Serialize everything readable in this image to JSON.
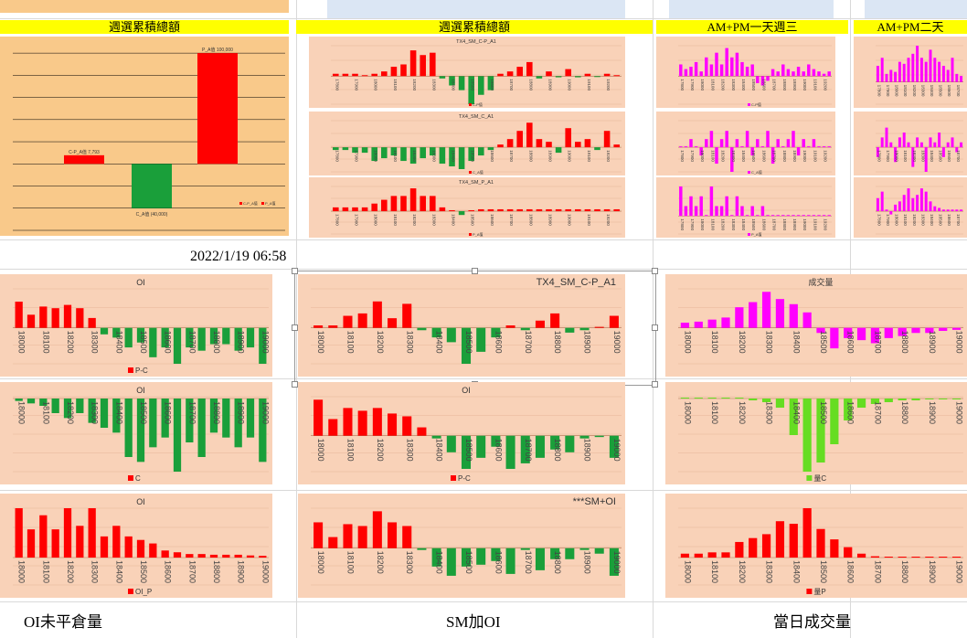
{
  "headers": {
    "weekly_total_left": "週選累積總額",
    "weekly_total_mid": "週選累積總額",
    "ampm_wed": "AM+PM一天週三",
    "ampm_tue": "AM+PM二天"
  },
  "timestamp": "2022/1/19 06:58",
  "captions": {
    "oi": "OI未平倉量",
    "sm_oi": "SM加OI",
    "volume": "當日成交量"
  },
  "colors": {
    "bg_orange": "#f9c98a",
    "bg_peach": "#f9d2b8",
    "red": "#ff0000",
    "green": "#1a9f3a",
    "magenta": "#ff00ff",
    "lime": "#66dd22"
  },
  "chart_data": [
    {
      "id": "weekly-total-waterfall",
      "type": "bar",
      "categories": [
        "C-P_A值",
        "C_A值",
        "P_A值"
      ],
      "values": [
        7793,
        -40000,
        100000
      ],
      "data_labels": [
        "C-P_A值 7,793",
        "C_A值 (40,000)",
        "P_A值 100,000"
      ],
      "legend": [
        "C-P_A值",
        "P_A值"
      ]
    },
    {
      "id": "tx4-sm-cp-a1-small",
      "type": "bar",
      "title": "TX4_SM_C-P_A1",
      "categories": [
        "17800",
        "17850",
        "17900",
        "17950",
        "18000",
        "18050",
        "18100",
        "18150",
        "18200",
        "18250",
        "18300",
        "18350",
        "18400",
        "18450",
        "18500",
        "18550",
        "18600",
        "18650",
        "18700",
        "18750",
        "18800",
        "18850",
        "18900",
        "18950",
        "19000",
        "19050",
        "19100",
        "19150",
        "19200",
        "19250"
      ],
      "values": [
        1000,
        1000,
        1000,
        0,
        1000,
        2000,
        4000,
        5000,
        11000,
        9000,
        10000,
        -1000,
        -4000,
        -6000,
        -12000,
        -8000,
        -6000,
        1000,
        2000,
        4000,
        6000,
        -1000,
        2000,
        -500,
        3000,
        -500,
        1000,
        -300,
        1000,
        0
      ],
      "legend": [
        "C-P值"
      ]
    },
    {
      "id": "tx4-sm-c-a1-small",
      "type": "bar",
      "title": "TX4_SM_C_A1",
      "categories": [
        "17800",
        "17850",
        "17900",
        "17950",
        "18000",
        "18050",
        "18100",
        "18150",
        "18200",
        "18250",
        "18300",
        "18350",
        "18400",
        "18450",
        "18500",
        "18550",
        "18600",
        "18650",
        "18700",
        "18750",
        "18800",
        "18850",
        "18900",
        "18950",
        "19000",
        "19050",
        "19100",
        "19150",
        "19200",
        "19250"
      ],
      "values": [
        -1000,
        -1000,
        -2000,
        -2000,
        -5000,
        -4000,
        -3000,
        -5000,
        -6000,
        -4000,
        -3000,
        -6000,
        -7000,
        -8000,
        -5000,
        -3000,
        -1000,
        1000,
        3000,
        6000,
        9000,
        3000,
        2000,
        -2000,
        7000,
        2000,
        3000,
        -1000,
        6000,
        1000
      ],
      "legend": [
        "C_A值"
      ]
    },
    {
      "id": "tx4-sm-p-a1-small",
      "type": "bar",
      "title": "TX4_SM_P_A1",
      "categories": [
        "17800",
        "17850",
        "17900",
        "17950",
        "18000",
        "18050",
        "18100",
        "18150",
        "18200",
        "18250",
        "18300",
        "18350",
        "18400",
        "18450",
        "18500",
        "18550",
        "18600",
        "18650",
        "18700",
        "18750",
        "18800",
        "18850",
        "18900",
        "18950",
        "19000",
        "19050",
        "19100",
        "19150",
        "19200",
        "19250"
      ],
      "values": [
        10,
        10,
        10,
        10,
        20,
        30,
        40,
        40,
        60,
        40,
        40,
        10,
        0,
        -10,
        0,
        5,
        5,
        5,
        5,
        5,
        5,
        5,
        5,
        5,
        5,
        5,
        5,
        5,
        5,
        5
      ],
      "legend": [
        "P_A值"
      ]
    },
    {
      "id": "oi-p-minus-c",
      "type": "bar",
      "title": "OI",
      "categories": [
        "18000",
        "18050",
        "18100",
        "18150",
        "18200",
        "18250",
        "18300",
        "18350",
        "18400",
        "18450",
        "18500",
        "18550",
        "18600",
        "18650",
        "18700",
        "18750",
        "18800",
        "18850",
        "18900",
        "18950",
        "19000"
      ],
      "values": [
        8000,
        4000,
        6500,
        6000,
        7000,
        6000,
        3000,
        -2000,
        -3000,
        -6000,
        -4500,
        -9000,
        -6000,
        -11000,
        -6000,
        -7000,
        -5000,
        -5000,
        -7000,
        -6000,
        -11000
      ],
      "legend": [
        "P-C"
      ]
    },
    {
      "id": "sm-cp-a1-large",
      "type": "bar",
      "title": "TX4_SM_C-P_A1",
      "categories": [
        "18000",
        "18050",
        "18100",
        "18150",
        "18200",
        "18250",
        "18300",
        "18350",
        "18400",
        "18450",
        "18500",
        "18550",
        "18600",
        "18650",
        "18700",
        "18750",
        "18800",
        "18850",
        "18900",
        "18950",
        "19000"
      ],
      "values": [
        1000,
        1000,
        5000,
        6000,
        11000,
        4000,
        10000,
        -1000,
        -4000,
        -6000,
        -15000,
        -10000,
        -4000,
        1000,
        -1000,
        3000,
        6000,
        -2000,
        -1000,
        0,
        5000
      ],
      "ylim": [
        -15000,
        15000
      ]
    },
    {
      "id": "volume",
      "type": "bar",
      "title": "成交量",
      "categories": [
        "18000",
        "18050",
        "18100",
        "18150",
        "18200",
        "18250",
        "18300",
        "18350",
        "18400",
        "18450",
        "18500",
        "18550",
        "18600",
        "18650",
        "18700",
        "18750",
        "18800",
        "18850",
        "18900",
        "18950",
        "19000"
      ],
      "values": [
        5000,
        6000,
        8000,
        10000,
        20000,
        25000,
        35000,
        28000,
        23000,
        15000,
        -5000,
        -20000,
        -10000,
        -12000,
        -15000,
        -10000,
        -8000,
        -5000,
        -5000,
        -3000,
        -2000
      ]
    },
    {
      "id": "oi-c",
      "type": "bar",
      "title": "OI",
      "categories": [
        "18000",
        "18050",
        "18100",
        "18150",
        "18200",
        "18250",
        "18300",
        "18350",
        "18400",
        "18450",
        "18500",
        "18550",
        "18600",
        "18650",
        "18700",
        "18750",
        "18800",
        "18850",
        "18900",
        "18950",
        "19000"
      ],
      "values": [
        -500,
        -1000,
        -1500,
        -3000,
        -4000,
        -3000,
        -5000,
        -6000,
        -7000,
        -12000,
        -13000,
        -10000,
        -8000,
        -15000,
        -9000,
        -12000,
        -7000,
        -8000,
        -10000,
        -8000,
        -13000
      ],
      "legend": [
        "C"
      ]
    },
    {
      "id": "oi-p-minus-c-2",
      "type": "bar",
      "title": "OI",
      "categories": [
        "18000",
        "18050",
        "18100",
        "18150",
        "18200",
        "18250",
        "18300",
        "18350",
        "18400",
        "18450",
        "18500",
        "18550",
        "18600",
        "18650",
        "18700",
        "18750",
        "18800",
        "18850",
        "18900",
        "18950",
        "19000"
      ],
      "values": [
        13000,
        6000,
        10000,
        9000,
        10000,
        8000,
        7000,
        3000,
        -1000,
        -6000,
        -12000,
        -8000,
        -4000,
        -12000,
        -10000,
        -8000,
        -5000,
        -6000,
        -1000,
        -500,
        -8000
      ],
      "legend": [
        "P-C"
      ]
    },
    {
      "id": "volume-c",
      "type": "bar",
      "categories": [
        "18000",
        "18050",
        "18100",
        "18150",
        "18200",
        "18250",
        "18300",
        "18350",
        "18400",
        "18450",
        "18500",
        "18550",
        "18600",
        "18650",
        "18700",
        "18750",
        "18800",
        "18850",
        "18900",
        "18950",
        "19000"
      ],
      "values": [
        0,
        0,
        0,
        0,
        0,
        -1000,
        -2000,
        -5000,
        -20000,
        -40000,
        -35000,
        -25000,
        -12000,
        -5000,
        -3000,
        -2000,
        -1000,
        -1000,
        -500,
        -500,
        -300
      ],
      "legend": [
        "量C"
      ]
    },
    {
      "id": "oi-p",
      "type": "bar",
      "title": "OI",
      "categories": [
        "18000",
        "18050",
        "18100",
        "18150",
        "18200",
        "18250",
        "18300",
        "18350",
        "18400",
        "18450",
        "18500",
        "18550",
        "18600",
        "18650",
        "18700",
        "18750",
        "18800",
        "18850",
        "18900",
        "18950",
        "19000"
      ],
      "values": [
        14000,
        8000,
        12000,
        8000,
        14000,
        9000,
        14000,
        6000,
        9000,
        6000,
        5000,
        4000,
        2000,
        1500,
        1000,
        1000,
        800,
        800,
        800,
        600,
        500
      ],
      "legend": [
        "OI_P"
      ]
    },
    {
      "id": "sm-plus-oi",
      "type": "bar",
      "title": "***SM+OI",
      "categories": [
        "18000",
        "18050",
        "18100",
        "18150",
        "18200",
        "18250",
        "18300",
        "18350",
        "18400",
        "18450",
        "18500",
        "18550",
        "18600",
        "18650",
        "18700",
        "18750",
        "18800",
        "18850",
        "18900",
        "18950",
        "19000"
      ],
      "values": [
        14000,
        6000,
        13000,
        12000,
        20000,
        14000,
        12000,
        -1000,
        -10000,
        -15000,
        -10000,
        -9000,
        -7000,
        -14000,
        -1000,
        -12000,
        -6000,
        -6000,
        -1000,
        -3000,
        -15000
      ]
    },
    {
      "id": "volume-p",
      "type": "bar",
      "categories": [
        "18000",
        "18050",
        "18100",
        "18150",
        "18200",
        "18250",
        "18300",
        "18350",
        "18400",
        "18450",
        "18500",
        "18550",
        "18600",
        "18650",
        "18700",
        "18750",
        "18800",
        "18850",
        "18900",
        "18950",
        "19000"
      ],
      "values": [
        3000,
        3000,
        4000,
        4000,
        12000,
        15000,
        18000,
        28000,
        26000,
        38000,
        22000,
        14000,
        8000,
        3000,
        1000,
        0,
        0,
        0,
        0,
        0,
        0
      ],
      "legend": [
        "量P"
      ]
    },
    {
      "id": "ampm-wed-cp",
      "type": "bar",
      "categories": [
        "17800",
        "17850",
        "17900",
        "17950",
        "18000",
        "18050",
        "18100",
        "18150",
        "18200",
        "18250",
        "18300",
        "18350",
        "18400",
        "18450",
        "18500",
        "18550",
        "18600",
        "18650",
        "18700",
        "18750",
        "18800",
        "18850",
        "18900",
        "18950",
        "19000",
        "19050",
        "19100",
        "19150",
        "19200",
        "19250"
      ],
      "values": [
        5,
        3,
        4,
        6,
        2,
        8,
        5,
        10,
        5,
        12,
        8,
        10,
        6,
        4,
        5,
        -3,
        -4,
        -2,
        3,
        2,
        5,
        3,
        2,
        4,
        2,
        5,
        3,
        2,
        1,
        2
      ],
      "legend": [
        "C-P值"
      ]
    },
    {
      "id": "ampm-wed-c",
      "type": "bar",
      "categories": [
        "17800",
        "17850",
        "17900",
        "17950",
        "18000",
        "18050",
        "18100",
        "18150",
        "18200",
        "18250",
        "18300",
        "18350",
        "18400",
        "18450",
        "18500",
        "18550",
        "18600",
        "18650",
        "18700",
        "18750",
        "18800",
        "18850",
        "18900",
        "18950",
        "19000",
        "19050",
        "19100",
        "19150",
        "19200",
        "19250"
      ],
      "values": [
        0,
        0,
        1,
        0,
        -1,
        1,
        2,
        -2,
        1,
        2,
        -3,
        1,
        0,
        2,
        -1,
        1,
        0,
        2,
        -2,
        1,
        0,
        1,
        2,
        -1,
        1,
        0,
        1,
        0,
        0,
        0
      ],
      "legend": [
        "C_A值"
      ]
    },
    {
      "id": "ampm-wed-p",
      "type": "bar",
      "categories": [
        "17800",
        "17850",
        "17900",
        "17950",
        "18000",
        "18050",
        "18100",
        "18150",
        "18200",
        "18250",
        "18300",
        "18350",
        "18400",
        "18450",
        "18500",
        "18550",
        "18600",
        "18650",
        "18700",
        "18750",
        "18800",
        "18850",
        "18900",
        "18950",
        "19000",
        "19050",
        "19100",
        "19150",
        "19200",
        "19250"
      ],
      "values": [
        3,
        1,
        2,
        1,
        2,
        0,
        3,
        1,
        1,
        2,
        0,
        2,
        1,
        0,
        1,
        0,
        1,
        0,
        0,
        0,
        0,
        0,
        0,
        0,
        0,
        0,
        0,
        0,
        0,
        0
      ],
      "legend": [
        "P_A值"
      ]
    },
    {
      "id": "ampm-tue-cp",
      "type": "bar",
      "categories": [
        "17800",
        "17850",
        "17900",
        "17950",
        "18000",
        "18050",
        "18100",
        "18150",
        "18200",
        "18250",
        "18300",
        "18350",
        "18400",
        "18450",
        "18500",
        "18550",
        "18600",
        "18650",
        "18700",
        "18750"
      ],
      "values": [
        8,
        12,
        4,
        6,
        5,
        10,
        9,
        12,
        14,
        18,
        12,
        10,
        16,
        12,
        10,
        8,
        6,
        12,
        4,
        3
      ]
    },
    {
      "id": "ampm-tue-c",
      "type": "bar",
      "categories": [
        "17800",
        "17850",
        "17900",
        "17950",
        "18000",
        "18050",
        "18100",
        "18150",
        "18200",
        "18250",
        "18300",
        "18350",
        "18400",
        "18450",
        "18500",
        "18550",
        "18600",
        "18650",
        "18700",
        "18750"
      ],
      "values": [
        -2,
        2,
        4,
        1,
        -3,
        2,
        3,
        1,
        -4,
        2,
        1,
        -5,
        2,
        1,
        3,
        -2,
        1,
        2,
        -1,
        1
      ]
    },
    {
      "id": "ampm-tue-p",
      "type": "bar",
      "categories": [
        "17800",
        "17850",
        "17900",
        "17950",
        "18000",
        "18050",
        "18100",
        "18150",
        "18200",
        "18250",
        "18300",
        "18350",
        "18400",
        "18450",
        "18500",
        "18550",
        "18600",
        "18650",
        "18700",
        "18750"
      ],
      "values": [
        8,
        12,
        1,
        -2,
        4,
        6,
        10,
        14,
        8,
        10,
        14,
        12,
        6,
        3,
        2,
        1,
        1,
        1,
        1,
        1
      ]
    }
  ]
}
